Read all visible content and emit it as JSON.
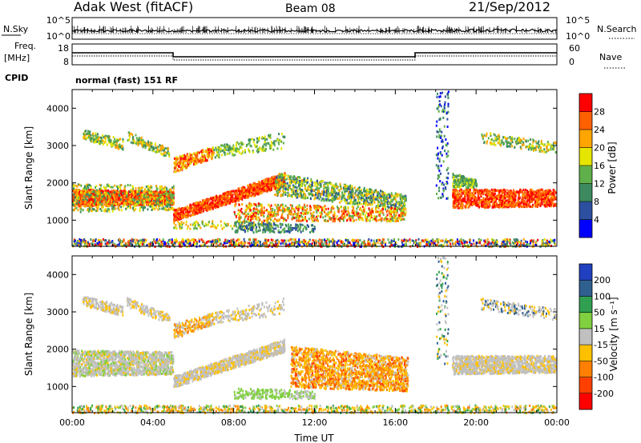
{
  "header": {
    "station": "Adak West (fitACF)",
    "beam": "Beam 08",
    "date": "21/Sep/2012"
  },
  "summary_panels": {
    "nsky": {
      "label": "N.Sky",
      "ticks": [
        "10^5",
        "10^0"
      ]
    },
    "nsearch": {
      "label": "N.Search",
      "ticks": [
        "10^5",
        "10^0"
      ]
    },
    "freq": {
      "label_line1": "Freq.",
      "label_line2": "[MHz]",
      "ticks": [
        "18",
        "8"
      ]
    },
    "nave": {
      "label": "Nave",
      "ticks": [
        "60",
        "0"
      ]
    },
    "cpid": {
      "label": "CPID",
      "value": "normal (fast) 151 RF"
    }
  },
  "chart_data": [
    {
      "type": "heatmap",
      "title": "",
      "ylabel": "Slant Range [km]",
      "xlabel": "",
      "xlim": [
        "00:00",
        "24:00"
      ],
      "ylim": [
        300,
        4500
      ],
      "x_ticks": [
        "00:00",
        "04:00",
        "08:00",
        "12:00",
        "16:00",
        "20:00",
        "00:00"
      ],
      "y_ticks": [
        1000,
        2000,
        3000,
        4000
      ],
      "colorbar": {
        "label": "Power [dB]",
        "ticks": [
          "4",
          "8",
          "12",
          "16",
          "20",
          "24",
          "28"
        ],
        "colors": [
          "#0000ff",
          "#2c4fa0",
          "#3e8a60",
          "#5fb04a",
          "#e5e500",
          "#ffa500",
          "#ff6000",
          "#ff0000"
        ]
      }
    },
    {
      "type": "heatmap",
      "title": "",
      "ylabel": "Slant Range [km]",
      "xlabel": "Time UT",
      "xlim": [
        "00:00",
        "24:00"
      ],
      "ylim": [
        300,
        4500
      ],
      "x_ticks": [
        "00:00",
        "04:00",
        "08:00",
        "12:00",
        "16:00",
        "20:00",
        "00:00"
      ],
      "y_ticks": [
        1000,
        2000,
        3000,
        4000
      ],
      "colorbar": {
        "label": "Velocity [m s⁻¹]",
        "ticks": [
          "200",
          "100",
          "50",
          "15",
          "-15",
          "-50",
          "-100",
          "-200"
        ],
        "colors": [
          "#2040c0",
          "#306090",
          "#30a050",
          "#80d040",
          "#c0c0c0",
          "#ffc000",
          "#ff8000",
          "#ff4000",
          "#ff0000"
        ]
      }
    }
  ]
}
